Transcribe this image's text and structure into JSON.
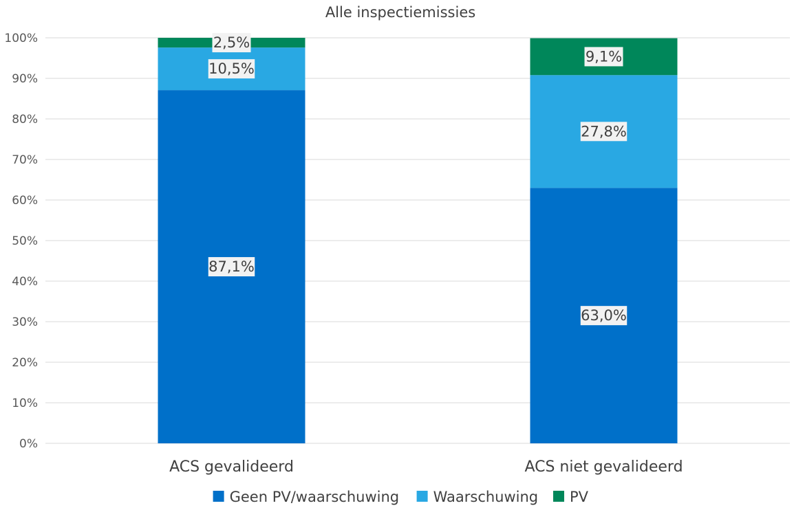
{
  "chart_data": {
    "type": "bar",
    "stacked": true,
    "title": "Alle inspectiemissies",
    "categories": [
      "ACS gevalideerd",
      "ACS niet gevalideerd"
    ],
    "series": [
      {
        "name": "Geen PV/waarschuwing",
        "color": "#0070C9",
        "values": [
          87.1,
          63.0
        ],
        "labels": [
          "87,1%",
          "63,0%"
        ]
      },
      {
        "name": "Waarschuwing",
        "color": "#29A8E3",
        "values": [
          10.5,
          27.8
        ],
        "labels": [
          "10,5%",
          "27,8%"
        ]
      },
      {
        "name": "PV",
        "color": "#00875A",
        "values": [
          2.5,
          9.1
        ],
        "labels": [
          "2,5%",
          "9,1%"
        ]
      }
    ],
    "ylim": [
      0,
      100
    ],
    "yticks": [
      "0%",
      "10%",
      "20%",
      "30%",
      "40%",
      "50%",
      "60%",
      "70%",
      "80%",
      "90%",
      "100%"
    ],
    "grid": true,
    "legend_position": "bottom"
  }
}
